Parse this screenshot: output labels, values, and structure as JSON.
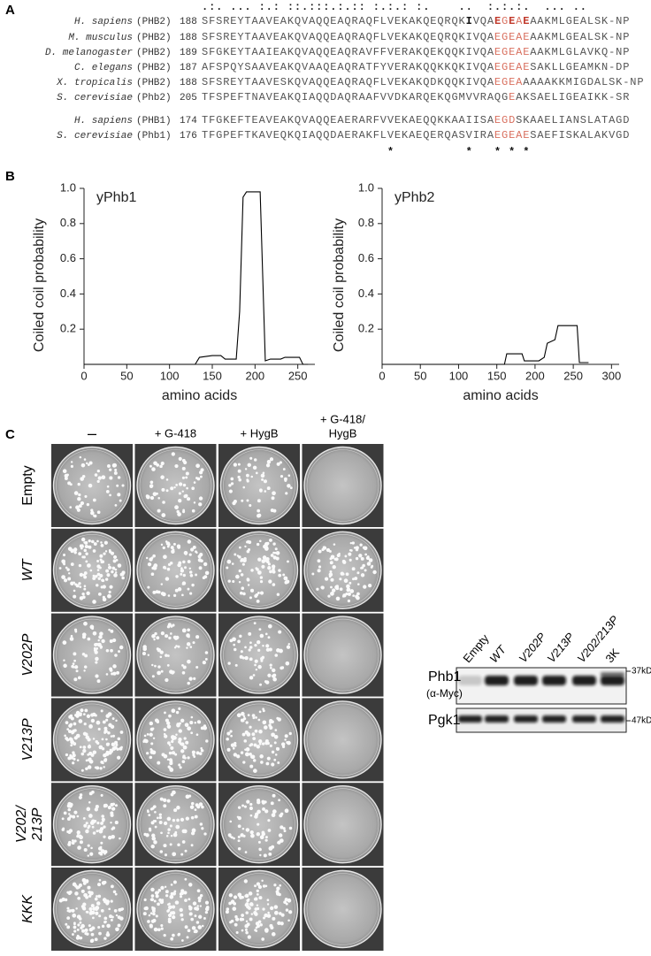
{
  "panel_labels": [
    "A",
    "B",
    "C"
  ],
  "alignment": {
    "conservation": ".:. ... :.: ::.:::.:.:: :.:.: :.    ..  :.:.:.  ... ..",
    "groups": [
      {
        "rows": [
          {
            "species": "H. sapiens",
            "protein": "(PHB2)",
            "start": 188,
            "segments": [
              {
                "text": "SFSREYTAAVEAKQVAQQEAQRAQFLVEKAKQEQRQK"
              },
              {
                "text": "I",
                "bold": true,
                "color": "#111111"
              },
              {
                "text": "VQA"
              },
              {
                "text": "E",
                "bold": true,
                "color": "#c0392b"
              },
              {
                "text": "G",
                "color": "#d9705f"
              },
              {
                "text": "E",
                "bold": true,
                "color": "#c0392b"
              },
              {
                "text": "A",
                "color": "#d9705f"
              },
              {
                "text": "E",
                "bold": true,
                "color": "#c0392b"
              },
              {
                "text": "AAKMLGEALSK-NP"
              }
            ]
          },
          {
            "species": "M. musculus",
            "protein": "(PHB2)",
            "start": 188,
            "segments": [
              {
                "text": "SFSREYTAAVEAKQVAQQEAQRAQFLVEKAKQEQRQKIVQA"
              },
              {
                "text": "EGEAE",
                "color": "#d9705f"
              },
              {
                "text": "AAKMLGEALSK-NP"
              }
            ]
          },
          {
            "species": "D. melanogaster",
            "protein": "(PHB2)",
            "start": 189,
            "segments": [
              {
                "text": "SFGKEYTAAIEAKQVAQQEAQRAVFFVERAKQEKQQKIVQA"
              },
              {
                "text": "EGEAE",
                "color": "#d9705f"
              },
              {
                "text": "AAKMLGLAVKQ-NP"
              }
            ]
          },
          {
            "species": "C. elegans",
            "protein": "(PHB2)",
            "start": 187,
            "segments": [
              {
                "text": "AFSPQYSAAVEAKQVAAQEAQRATFYVERAKQQKKQKIVQA"
              },
              {
                "text": "EGEAE",
                "color": "#d9705f"
              },
              {
                "text": "SAKLLGEAMKN-DP"
              }
            ]
          },
          {
            "species": "X. tropicalis",
            "protein": "(PHB2)",
            "start": 188,
            "segments": [
              {
                "text": "SFSREYTAAVESKQVAQQEAQRAQFLVEKAKQDKQQKIVQA"
              },
              {
                "text": "EGEA",
                "color": "#d9705f"
              },
              {
                "text": "AAAAKKMIGDALSK-NP"
              }
            ]
          },
          {
            "species": "S. cerevisiae",
            "protein": "(Phb2)",
            "start": 205,
            "segments": [
              {
                "text": "TFSPEFTNAVEAKQIAQQDAQRAAFVVDKARQEKQGMVVRAQG"
              },
              {
                "text": "E",
                "color": "#d9705f"
              },
              {
                "text": "AKSAELIGEAIKK-SR"
              }
            ]
          }
        ]
      },
      {
        "rows": [
          {
            "species": "H. sapiens",
            "protein": "(PHB1)",
            "start": 174,
            "segments": [
              {
                "text": "TFGKEFTEAVEAKQVAQQEAERARFVVEKAEQQKKAAIISA"
              },
              {
                "text": "EGD",
                "color": "#d9705f"
              },
              {
                "text": "SKAAELIANSLATAGD"
              }
            ]
          },
          {
            "species": "S. cerevisiae",
            "protein": "(Phb1)",
            "start": 176,
            "segments": [
              {
                "text": "TFGPEFTKAVEQKQIAQQDAERAKFLVEKAEQERQASVIRA"
              },
              {
                "text": "EGEAE",
                "color": "#d9705f"
              },
              {
                "text": "SAEFISKALAKVGD"
              }
            ]
          }
        ]
      }
    ],
    "asterisks": "                          *          *   * * *"
  },
  "chart_data": [
    {
      "type": "line",
      "title": "yPhb1",
      "xlabel": "amino acids",
      "ylabel": "Coiled coil probability",
      "x": [
        0,
        130,
        135,
        150,
        160,
        165,
        178,
        182,
        186,
        190,
        206,
        209,
        212,
        218,
        230,
        235,
        252,
        256,
        262
      ],
      "series": [
        {
          "color": "#000000",
          "values": [
            0,
            0,
            0.04,
            0.05,
            0.05,
            0.03,
            0.03,
            0.3,
            0.95,
            0.98,
            0.98,
            0.5,
            0.02,
            0.03,
            0.03,
            0.04,
            0.04,
            0,
            0
          ]
        }
      ],
      "xlim": [
        0,
        270
      ],
      "ylim": [
        0,
        1
      ],
      "xticks": [
        0,
        50,
        100,
        150,
        200,
        250
      ],
      "yticks": [
        0.2,
        0.4,
        0.6,
        0.8,
        {
          "value": 1,
          "label": "1.0"
        }
      ]
    },
    {
      "type": "line",
      "title": "yPhb2",
      "xlabel": "amino acids",
      "ylabel": "Coiled coil probability",
      "x": [
        0,
        160,
        163,
        183,
        186,
        205,
        212,
        216,
        226,
        230,
        255,
        258,
        270
      ],
      "series": [
        {
          "color": "#000000",
          "values": [
            0,
            0,
            0.06,
            0.06,
            0.02,
            0.02,
            0.04,
            0.12,
            0.14,
            0.22,
            0.22,
            0.01,
            0.01
          ]
        }
      ],
      "xlim": [
        0,
        310
      ],
      "ylim": [
        0,
        1
      ],
      "xticks": [
        0,
        50,
        100,
        150,
        200,
        250,
        300
      ],
      "yticks": [
        0.2,
        0.4,
        0.6,
        0.8,
        {
          "value": 1,
          "label": "1.0"
        }
      ]
    }
  ],
  "plates": {
    "columns": [
      [
        "–"
      ],
      [
        "+ G-418"
      ],
      [
        "+ HygB"
      ],
      [
        "+ G-418/",
        "HygB"
      ]
    ],
    "rows": [
      [
        "Empty"
      ],
      [
        "WT"
      ],
      [
        "V202P"
      ],
      [
        "V213P"
      ],
      [
        "V202/",
        "213P"
      ],
      [
        "KKK"
      ]
    ]
  },
  "blot": {
    "lanes": [
      "Empty",
      "WT",
      "V202P",
      "V213P",
      "V202/213P",
      "3K"
    ],
    "rows": [
      [
        "Phb1",
        "(α-Myc)"
      ],
      [
        "Pgk1"
      ]
    ],
    "markers": [
      "37kD",
      "47kD"
    ]
  }
}
